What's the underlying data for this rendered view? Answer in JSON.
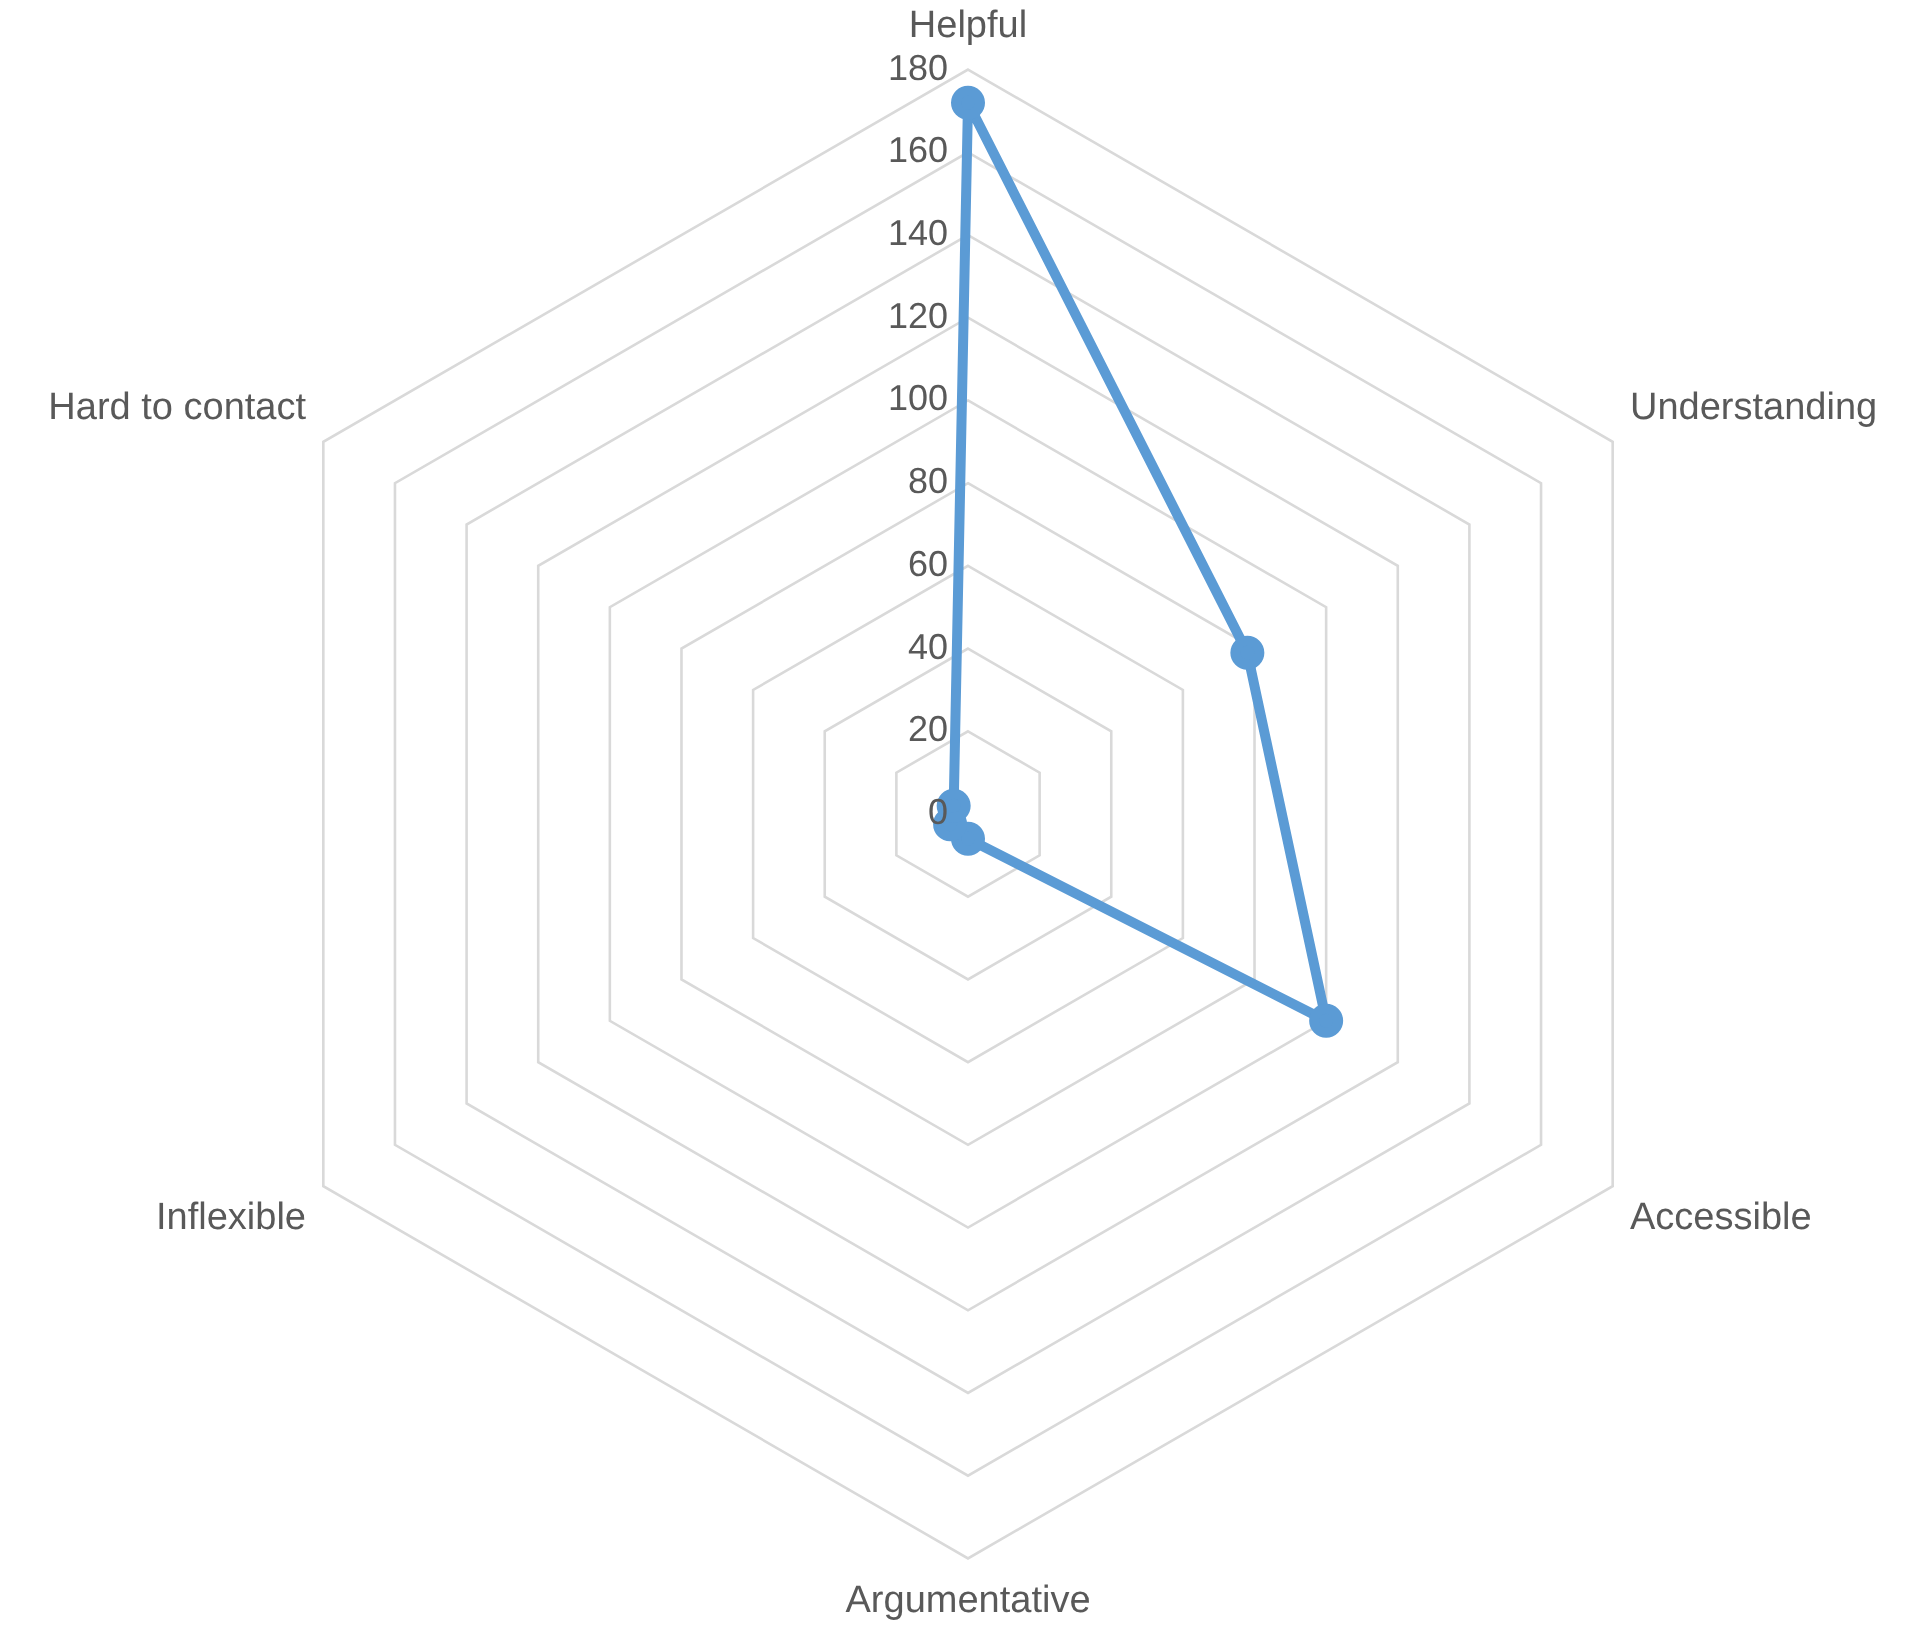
{
  "chart_data": {
    "type": "radar",
    "categories": [
      "Helpful",
      "Understanding",
      "Accessible",
      "Argumentative",
      "Inflexible",
      "Hard to contact"
    ],
    "series": [
      {
        "color": "#5b9bd5",
        "values": [
          172,
          78,
          100,
          6,
          5,
          4
        ]
      }
    ],
    "ylim": [
      0,
      180
    ],
    "yticks": [
      0,
      20,
      40,
      60,
      80,
      100,
      120,
      140,
      160,
      180
    ],
    "grid": true,
    "legend": false,
    "marker": "circle"
  }
}
